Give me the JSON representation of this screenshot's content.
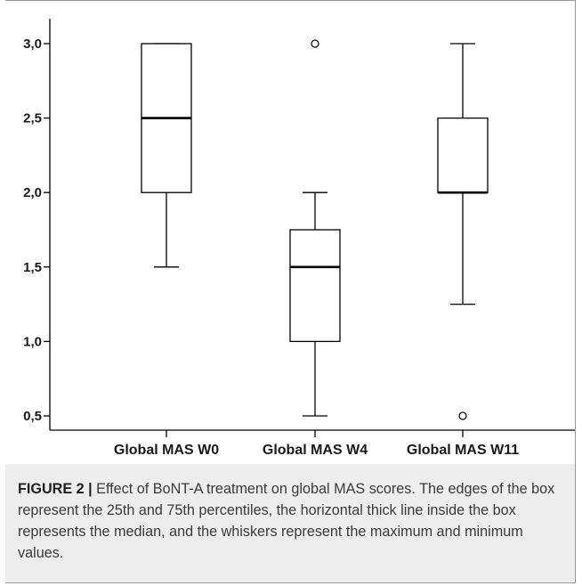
{
  "chart_data": {
    "type": "boxplot",
    "categories": [
      "Global MAS W0",
      "Global MAS W4",
      "Global MAS W11"
    ],
    "boxes": [
      {
        "min": 1.5,
        "q1": 2.0,
        "median": 2.5,
        "q3": 3.0,
        "max": 3.0,
        "outliers": []
      },
      {
        "min": 0.5,
        "q1": 1.0,
        "median": 1.5,
        "q3": 1.75,
        "max": 2.0,
        "outliers": [
          3.0
        ]
      },
      {
        "min": 1.25,
        "q1": 2.0,
        "median": 2.0,
        "q3": 2.5,
        "max": 3.0,
        "outliers": [
          0.5
        ]
      }
    ],
    "y_ticks": [
      0.5,
      1.0,
      1.5,
      2.0,
      2.5,
      3.0
    ],
    "y_tick_labels": [
      "0,5",
      "1,0",
      "1,5",
      "2,0",
      "2,5",
      "3,0"
    ],
    "ylim": [
      0.5,
      3.0
    ],
    "grid": false,
    "colors": {
      "box_fill": "#ffffff",
      "stroke": "#000000"
    }
  },
  "caption": {
    "label": "FIGURE 2 |",
    "text": " Effect of BoNT-A treatment on global MAS scores. The edges of the box represent the 25th and 75th percentiles, the horizontal thick line inside the box represents the median, and the whiskers represent the maximum and minimum values."
  }
}
